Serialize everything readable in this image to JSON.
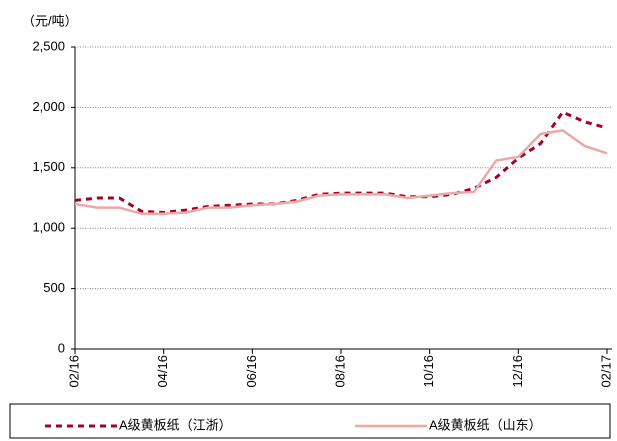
{
  "chart_data": {
    "type": "line",
    "y_label": "（元/吨）",
    "categories": [
      "02/16",
      null,
      null,
      null,
      "04/16",
      null,
      null,
      null,
      "06/16",
      null,
      null,
      null,
      "08/16",
      null,
      null,
      null,
      "10/16",
      null,
      null,
      null,
      "12/16",
      null,
      null,
      null,
      "02/17"
    ],
    "series": [
      {
        "name": "A级黄板纸（江浙）",
        "color": "#a50026",
        "dash": true,
        "values": [
          1230,
          1250,
          1250,
          1140,
          1130,
          1150,
          1180,
          1190,
          1200,
          1200,
          1230,
          1280,
          1290,
          1290,
          1290,
          1260,
          1260,
          1280,
          1330,
          1420,
          1580,
          1700,
          1960,
          1880,
          1830
        ]
      },
      {
        "name": "A级黄板纸（山东）",
        "color": "#eba8a8",
        "dash": false,
        "values": [
          1200,
          1170,
          1170,
          1120,
          1120,
          1130,
          1170,
          1170,
          1190,
          1200,
          1220,
          1270,
          1280,
          1280,
          1280,
          1250,
          1270,
          1290,
          1300,
          1560,
          1590,
          1780,
          1810,
          1680,
          1620
        ]
      }
    ],
    "ylim": [
      0,
      2500
    ],
    "yticks": [
      0,
      500,
      {
        "value": 1000,
        "label": "1,000"
      },
      {
        "value": 1500,
        "label": "1,500"
      },
      {
        "value": 2000,
        "label": "2,000"
      },
      {
        "value": 2500,
        "label": "2,500"
      }
    ],
    "grid": true
  }
}
